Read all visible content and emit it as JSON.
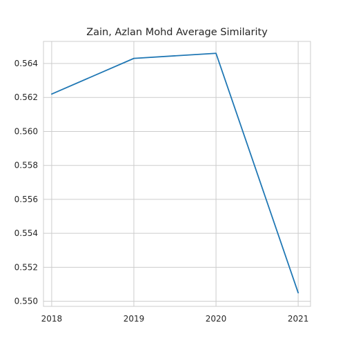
{
  "chart_data": {
    "type": "line",
    "title": "Zain, Azlan Mohd Average Similarity",
    "xlabel": "",
    "ylabel": "",
    "x": [
      2018,
      2019,
      2020,
      2021
    ],
    "x_tick_labels": [
      "2018",
      "2019",
      "2020",
      "2021"
    ],
    "y_ticks": [
      0.55,
      0.552,
      0.554,
      0.556,
      0.558,
      0.56,
      0.562,
      0.564
    ],
    "y_tick_labels": [
      "0.550",
      "0.552",
      "0.554",
      "0.556",
      "0.558",
      "0.560",
      "0.562",
      "0.564"
    ],
    "xlim": [
      2017.9,
      2021.15
    ],
    "ylim": [
      0.5497,
      0.5653
    ],
    "grid": true,
    "series": [
      {
        "color": "#1f77b4",
        "values": [
          0.5622,
          0.5643,
          0.5646,
          0.5505
        ]
      }
    ]
  }
}
